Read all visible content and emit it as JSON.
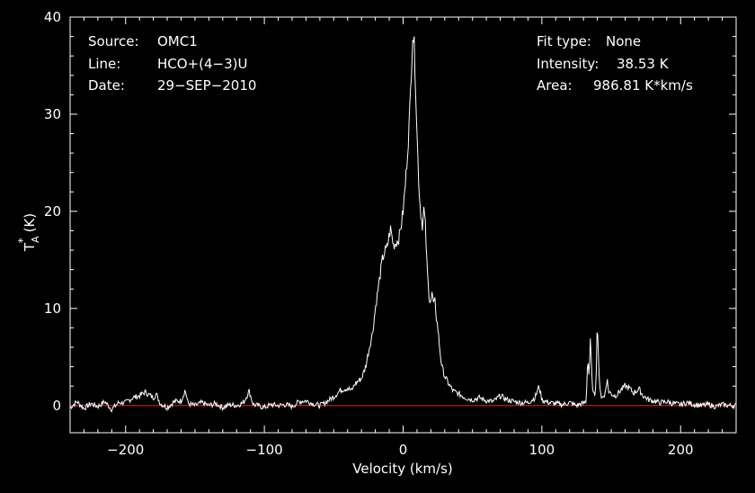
{
  "header": {
    "source_label": "Source:",
    "source_value": "OMC1",
    "line_label": "Line:",
    "line_value": "HCO+(4−3)U",
    "date_label": "Date:",
    "date_value": "29−SEP−2010",
    "fit_label": "Fit type:",
    "fit_value": "None",
    "intensity_label": "Intensity:",
    "intensity_value": "38.53 K",
    "area_label": "Area:",
    "area_value": "986.81 K*km/s"
  },
  "colors": {
    "background": "#000000",
    "axes": "#ffffff",
    "spectrum": "#ffffff",
    "baseline": "#ff0000"
  },
  "chart_data": {
    "type": "line",
    "xlabel": "Velocity (km/s)",
    "ylabel": "T_A* (K)",
    "ylabel_main": "T",
    "ylabel_sub": "A",
    "ylabel_sup": "*",
    "ylabel_unit": "(K)",
    "xlim": [
      -240,
      240
    ],
    "ylim": [
      -2.8,
      40
    ],
    "x_ticks": [
      -200,
      -100,
      0,
      100,
      200
    ],
    "x_tick_labels": [
      "−200",
      "−100",
      "0",
      "100",
      "200"
    ],
    "y_ticks": [
      0,
      10,
      20,
      30,
      40
    ],
    "y_tick_labels": [
      "0",
      "10",
      "20",
      "30",
      "40"
    ],
    "baseline_y": 0,
    "grid": false,
    "legend": "none",
    "series": [
      {
        "x": [
          -240,
          -235,
          -230,
          -225,
          -220,
          -215,
          -210,
          -205,
          -200,
          -195,
          -190,
          -186,
          -180,
          -178,
          -175,
          -170,
          -165,
          -160,
          -157,
          -155,
          -150,
          -145,
          -140,
          -135,
          -130,
          -125,
          -120,
          -115,
          -111,
          -108,
          -105,
          -100,
          -95,
          -90,
          -85,
          -80,
          -75,
          -70,
          -65,
          -60,
          -55,
          -50,
          -45,
          -40,
          -37,
          -35,
          -30,
          -27,
          -25,
          -22,
          -20,
          -18,
          -15,
          -13,
          -12,
          -10,
          -9,
          -7,
          -5,
          -3,
          -1,
          0,
          2,
          4,
          5,
          6,
          7,
          8,
          9,
          10,
          11,
          12,
          13,
          14,
          15,
          16,
          17,
          18,
          19,
          20,
          21,
          22,
          23,
          24,
          25,
          26,
          27,
          28,
          30,
          33,
          36,
          40,
          45,
          50,
          55,
          60,
          65,
          70,
          75,
          80,
          85,
          90,
          95,
          98,
          100,
          105,
          110,
          115,
          120,
          125,
          128,
          130,
          132,
          133,
          134,
          135,
          136,
          137,
          138,
          139,
          140,
          141,
          142,
          143,
          144,
          145,
          147,
          148,
          150,
          153,
          157,
          160,
          163,
          166,
          170,
          173,
          177,
          180,
          185,
          190,
          195,
          200,
          205,
          210,
          215,
          220,
          225,
          230,
          235,
          240
        ],
        "y": [
          -0.2,
          0.4,
          -0.3,
          0.2,
          -0.1,
          0.4,
          -0.4,
          0.3,
          0.3,
          0.8,
          1.0,
          1.4,
          0.8,
          1.2,
          0.2,
          -0.2,
          0.4,
          0.5,
          1.6,
          0.2,
          0.0,
          0.3,
          0.0,
          0.2,
          -0.2,
          0.1,
          0.0,
          0.3,
          1.5,
          0.1,
          0.0,
          -0.2,
          0.1,
          0.0,
          0.1,
          -0.1,
          0.4,
          0.5,
          0.2,
          0.0,
          0.4,
          0.9,
          1.6,
          1.8,
          1.5,
          2.2,
          2.8,
          4.0,
          5.5,
          7.5,
          10.0,
          12.0,
          15.0,
          16.0,
          16.0,
          17.5,
          18.2,
          16.5,
          16.8,
          17.2,
          19.0,
          20.0,
          23.5,
          28.0,
          31.0,
          35.0,
          38.53,
          37.0,
          33.0,
          28.0,
          24.0,
          21.0,
          19.5,
          18.5,
          20.3,
          18.5,
          15.0,
          12.5,
          11.0,
          10.8,
          11.6,
          10.2,
          10.8,
          9.0,
          8.0,
          6.5,
          5.0,
          4.0,
          3.0,
          2.2,
          1.5,
          1.2,
          0.8,
          0.6,
          0.8,
          0.5,
          0.4,
          1.0,
          0.6,
          0.4,
          0.3,
          0.3,
          0.8,
          2.0,
          0.6,
          0.3,
          0.2,
          0.1,
          0.3,
          0.0,
          0.2,
          0.2,
          0.5,
          5.0,
          3.0,
          6.8,
          3.0,
          1.2,
          1.0,
          2.5,
          9.0,
          4.0,
          1.2,
          1.0,
          1.0,
          0.8,
          2.8,
          1.5,
          1.2,
          1.0,
          1.6,
          2.0,
          1.8,
          1.3,
          1.7,
          1.0,
          0.6,
          0.5,
          0.3,
          0.4,
          0.2,
          0.1,
          0.3,
          0.1,
          0.0,
          0.1,
          -0.1,
          0.1,
          0.0,
          0.0
        ]
      }
    ]
  }
}
